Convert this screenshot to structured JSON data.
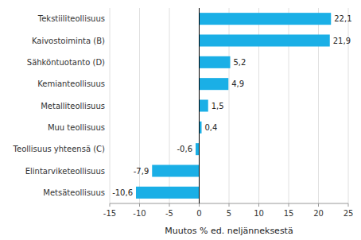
{
  "chart_data": {
    "type": "bar",
    "orientation": "horizontal",
    "categories": [
      "Metsäteollisuus",
      "Elintarviketeollisuus",
      "Teollisuus yhteensä (C)",
      "Muu teollisuus",
      "Metalliteollisuus",
      "Kemianteollisuus",
      "Sähköntuotanto (D)",
      "Kaivostoiminta (B)",
      "Tekstiiliteollisuus"
    ],
    "values": [
      -10.6,
      -7.9,
      -0.6,
      0.4,
      1.5,
      4.9,
      5.2,
      21.9,
      22.1
    ],
    "value_labels": [
      "-10,6",
      "-7,9",
      "-0,6",
      "0,4",
      "1,5",
      "4,9",
      "5,2",
      "21,9",
      "22,1"
    ],
    "data_labels": true,
    "color": "#1aafe6",
    "xlabel": "Muutos % ed. neljänneksestä",
    "xlim": [
      -15,
      25
    ],
    "xticks": [
      -15,
      -10,
      -5,
      0,
      5,
      10,
      15,
      20,
      25
    ],
    "grid": true
  }
}
